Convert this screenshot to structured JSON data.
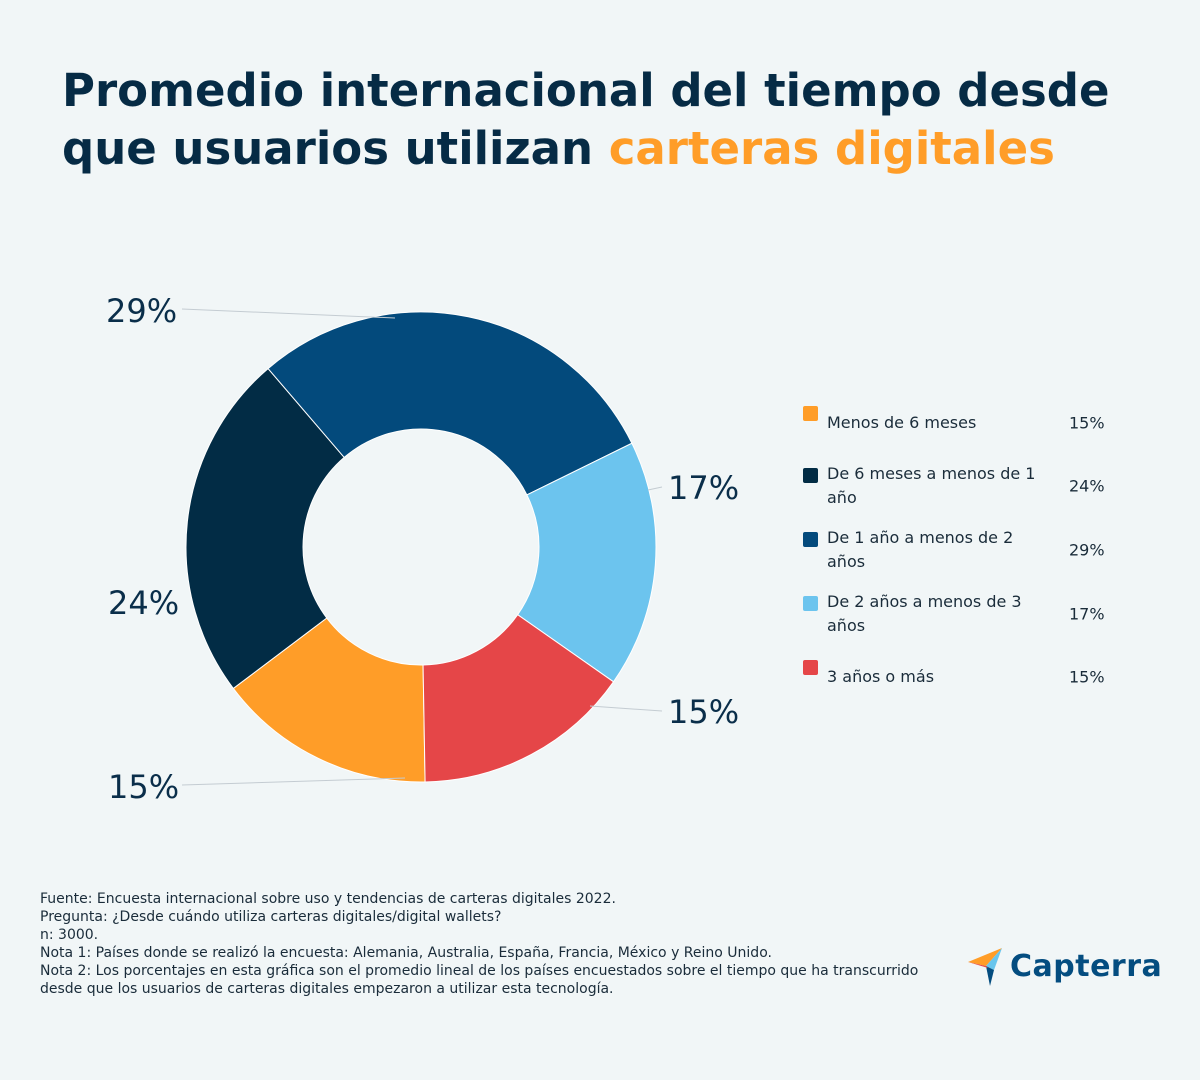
{
  "title": {
    "line1": "Promedio internacional del tiempo desde",
    "line2_plain": "que usuarios utilizan ",
    "line2_highlight": "carteras digitales"
  },
  "chart_data": {
    "type": "pie",
    "subtype": "donut",
    "categories": [
      "Menos de 6 meses",
      "De 6 meses a menos de 1 año",
      "De 1 año a menos de 2 años",
      "De 2 años a menos de 3 años",
      "3 años o más"
    ],
    "values": [
      15,
      24,
      29,
      17,
      15
    ],
    "colors": [
      "#ff9d28",
      "#022c45",
      "#034a7c",
      "#6cc4ee",
      "#e54648"
    ],
    "value_labels": [
      "15%",
      "24%",
      "29%",
      "17%",
      "15%"
    ],
    "legend_position": "right"
  },
  "legend": [
    {
      "label": "Menos de 6 meses",
      "value": "15%",
      "color": "#ff9d28"
    },
    {
      "label": "De 6 meses a menos de 1 año",
      "value": "24%",
      "color": "#022c45"
    },
    {
      "label": "De 1 año a menos de 2 años",
      "value": "29%",
      "color": "#034a7c"
    },
    {
      "label": "De 2 años a menos de 3 años",
      "value": "17%",
      "color": "#6cc4ee"
    },
    {
      "label": "3 años o más",
      "value": "15%",
      "color": "#e54648"
    }
  ],
  "footer": {
    "source": "Fuente: Encuesta internacional sobre uso y tendencias de carteras digitales 2022.",
    "question": "Pregunta: ¿Desde cuándo utiliza carteras digitales/digital wallets?",
    "n": "n: 3000.",
    "note1": "Nota 1: Países donde se realizó la encuesta: Alemania, Australia, España, Francia, México y Reino Unido.",
    "note2": "Nota 2: Los porcentajes en esta gráfica son el promedio lineal de los países encuestados sobre el tiempo que ha transcurrido desde que los usuarios de carteras digitales empezaron a utilizar esta tecnología."
  },
  "logo": {
    "text": "Capterra"
  }
}
